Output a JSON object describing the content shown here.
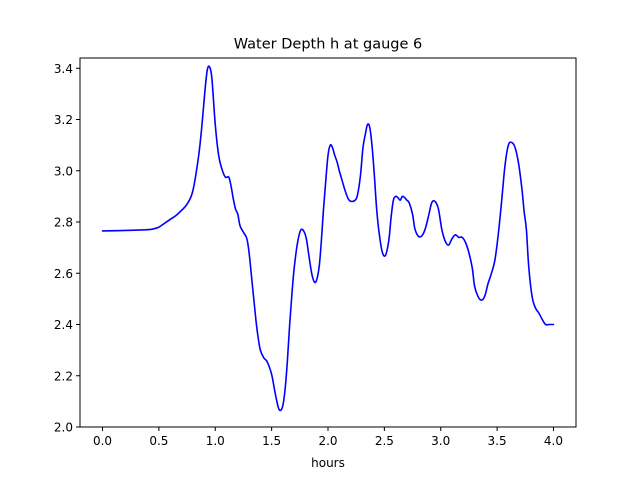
{
  "chart_data": {
    "type": "line",
    "title": "Water Depth h at gauge 6",
    "xlabel": "hours",
    "ylabel": "",
    "xlim": [
      -0.2,
      4.2
    ],
    "ylim": [
      2.0,
      3.44
    ],
    "xticks": [
      0.0,
      0.5,
      1.0,
      1.5,
      2.0,
      2.5,
      3.0,
      3.5,
      4.0
    ],
    "xtick_labels": [
      "0.0",
      "0.5",
      "1.0",
      "1.5",
      "2.0",
      "2.5",
      "3.0",
      "3.5",
      "4.0"
    ],
    "yticks": [
      2.0,
      2.2,
      2.4,
      2.6,
      2.8,
      3.0,
      3.2,
      3.4
    ],
    "ytick_labels": [
      "2.0",
      "2.2",
      "2.4",
      "2.6",
      "2.8",
      "3.0",
      "3.2",
      "3.4"
    ],
    "grid": false,
    "legend": false,
    "series": [
      {
        "color": "#0000ff",
        "x": [
          0.0,
          0.2,
          0.4,
          0.45,
          0.5,
          0.55,
          0.6,
          0.65,
          0.7,
          0.75,
          0.8,
          0.85,
          0.88,
          0.91,
          0.93,
          0.95,
          0.97,
          1.0,
          1.03,
          1.06,
          1.09,
          1.12,
          1.14,
          1.16,
          1.18,
          1.2,
          1.22,
          1.25,
          1.28,
          1.3,
          1.33,
          1.36,
          1.38,
          1.4,
          1.43,
          1.46,
          1.5,
          1.53,
          1.56,
          1.58,
          1.6,
          1.62,
          1.64,
          1.66,
          1.68,
          1.7,
          1.73,
          1.76,
          1.79,
          1.81,
          1.83,
          1.86,
          1.89,
          1.92,
          1.94,
          1.96,
          1.98,
          2.0,
          2.02,
          2.04,
          2.06,
          2.08,
          2.1,
          2.12,
          2.15,
          2.18,
          2.21,
          2.25,
          2.27,
          2.29,
          2.31,
          2.33,
          2.35,
          2.37,
          2.39,
          2.41,
          2.43,
          2.45,
          2.48,
          2.51,
          2.54,
          2.56,
          2.58,
          2.6,
          2.62,
          2.64,
          2.66,
          2.68,
          2.7,
          2.72,
          2.75,
          2.77,
          2.8,
          2.83,
          2.86,
          2.89,
          2.92,
          2.95,
          2.98,
          3.01,
          3.04,
          3.07,
          3.1,
          3.13,
          3.16,
          3.19,
          3.22,
          3.25,
          3.28,
          3.3,
          3.33,
          3.36,
          3.39,
          3.42,
          3.45,
          3.48,
          3.51,
          3.54,
          3.57,
          3.6,
          3.63,
          3.66,
          3.69,
          3.72,
          3.74,
          3.76,
          3.78,
          3.81,
          3.84,
          3.87,
          3.9,
          3.93,
          3.96,
          3.98,
          4.0
        ],
        "y": [
          2.765,
          2.767,
          2.77,
          2.773,
          2.78,
          2.795,
          2.81,
          2.825,
          2.845,
          2.87,
          2.92,
          3.05,
          3.17,
          3.32,
          3.395,
          3.405,
          3.36,
          3.18,
          3.06,
          3.005,
          2.975,
          2.975,
          2.94,
          2.89,
          2.85,
          2.83,
          2.785,
          2.76,
          2.735,
          2.68,
          2.55,
          2.42,
          2.35,
          2.3,
          2.27,
          2.255,
          2.205,
          2.135,
          2.075,
          2.065,
          2.085,
          2.15,
          2.26,
          2.4,
          2.52,
          2.62,
          2.72,
          2.77,
          2.76,
          2.73,
          2.67,
          2.59,
          2.565,
          2.62,
          2.72,
          2.85,
          2.96,
          3.06,
          3.1,
          3.09,
          3.06,
          3.035,
          3.0,
          2.97,
          2.925,
          2.89,
          2.88,
          2.89,
          2.925,
          2.99,
          3.09,
          3.14,
          3.18,
          3.17,
          3.1,
          2.99,
          2.86,
          2.77,
          2.685,
          2.67,
          2.73,
          2.82,
          2.885,
          2.9,
          2.895,
          2.885,
          2.9,
          2.895,
          2.885,
          2.875,
          2.83,
          2.775,
          2.745,
          2.745,
          2.77,
          2.82,
          2.875,
          2.88,
          2.85,
          2.77,
          2.725,
          2.71,
          2.735,
          2.75,
          2.74,
          2.74,
          2.72,
          2.68,
          2.62,
          2.55,
          2.51,
          2.495,
          2.51,
          2.56,
          2.6,
          2.65,
          2.75,
          2.88,
          3.02,
          3.1,
          3.11,
          3.09,
          3.03,
          2.93,
          2.84,
          2.77,
          2.63,
          2.51,
          2.465,
          2.445,
          2.42,
          2.4,
          2.4,
          2.4,
          2.4
        ]
      }
    ]
  }
}
